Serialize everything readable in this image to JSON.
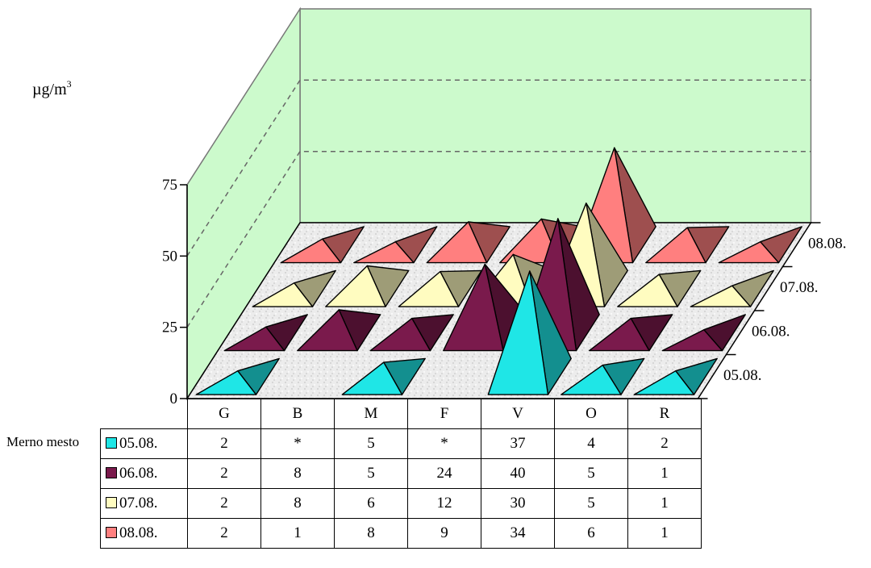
{
  "chart_data": {
    "type": "bar",
    "subtype": "3d-pyramid",
    "ylabel": "µg/m",
    "ylabel_superscript": "3",
    "ylim": [
      0,
      75
    ],
    "yticks": [
      "0",
      "25",
      "50",
      "75"
    ],
    "grid": true,
    "table_side_label": "Merno mesto",
    "categories": [
      "G",
      "B",
      "M",
      "F",
      "V",
      "O",
      "R"
    ],
    "series": [
      {
        "name": "05.08.",
        "color": "#1fe6e6",
        "display": [
          "2",
          "*",
          "5",
          "*",
          "37",
          "4",
          "2"
        ],
        "values": [
          2,
          null,
          5,
          null,
          37,
          4,
          2
        ]
      },
      {
        "name": "06.08.",
        "color": "#7a1a4c",
        "display": [
          "2",
          "8",
          "5",
          "24",
          "40",
          "5",
          "1"
        ],
        "values": [
          2,
          8,
          5,
          24,
          40,
          5,
          1
        ]
      },
      {
        "name": "07.08.",
        "color": "#fffcc0",
        "display": [
          "2",
          "8",
          "6",
          "12",
          "30",
          "5",
          "1"
        ],
        "values": [
          2,
          8,
          6,
          12,
          30,
          5,
          1
        ]
      },
      {
        "name": "08.08.",
        "color": "#ff7f7f",
        "display": [
          "2",
          "1",
          "8",
          "9",
          "34",
          "6",
          "1"
        ],
        "values": [
          2,
          1,
          8,
          9,
          34,
          6,
          1
        ]
      }
    ]
  }
}
